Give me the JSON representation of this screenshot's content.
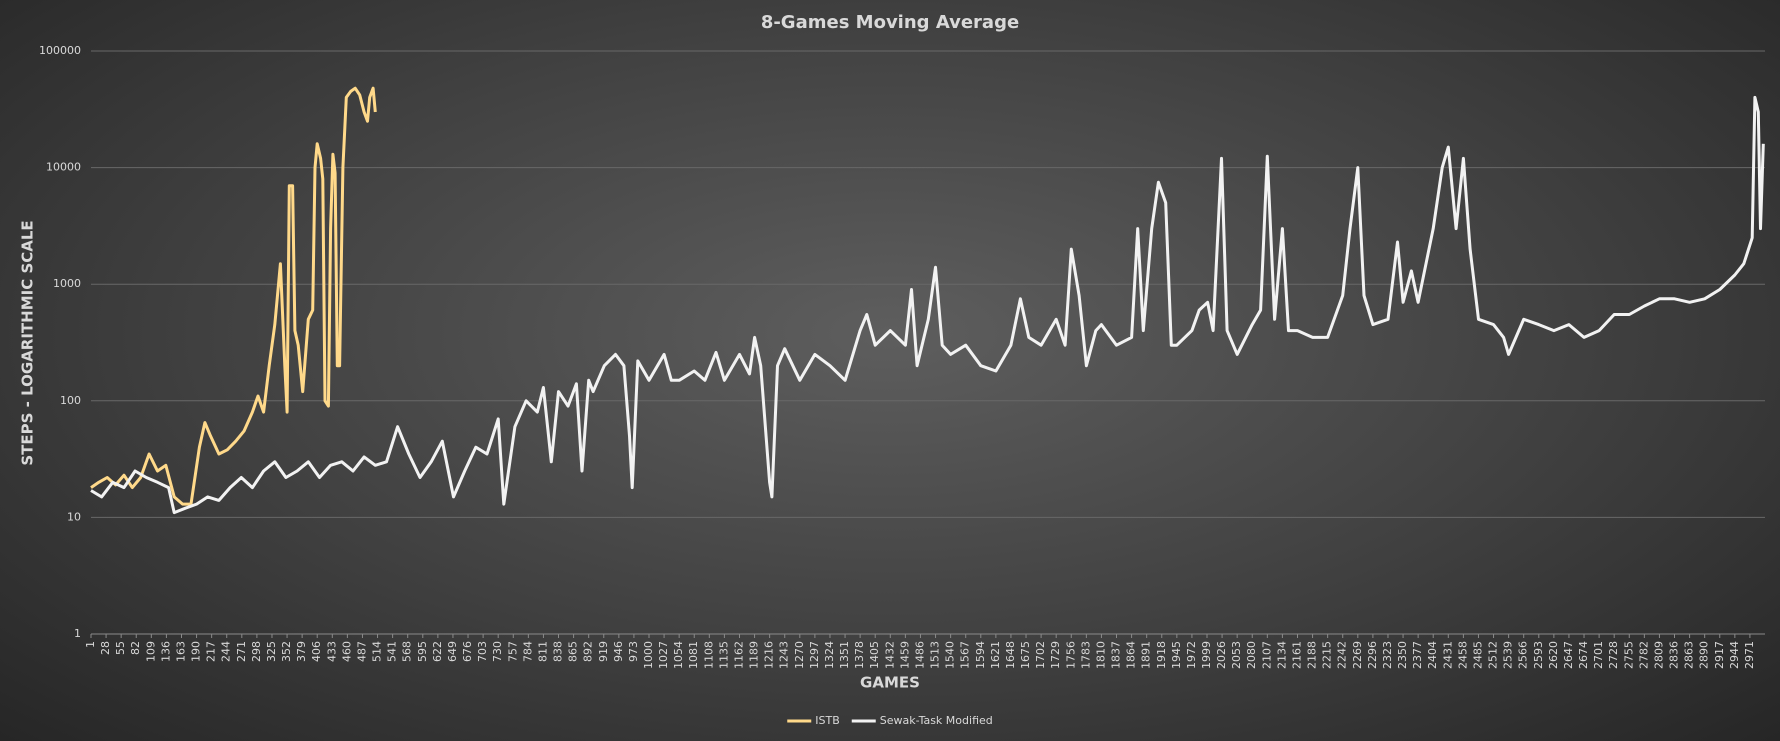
{
  "chart_data": {
    "type": "line",
    "title": "8-Games  Moving  Average",
    "x_label": "GAMES",
    "y_label": "STEPS - LOGARITHMIC SCALE",
    "y_scale": "log",
    "grid": true,
    "legend": "bottom",
    "xlim": [
      1,
      2998
    ],
    "ylim": [
      1,
      100000
    ],
    "yticks": [
      1,
      10,
      100,
      1000,
      10000,
      100000
    ],
    "xticks": [
      1,
      28,
      55,
      82,
      109,
      136,
      163,
      190,
      217,
      244,
      271,
      298,
      325,
      352,
      379,
      406,
      433,
      460,
      487,
      514,
      541,
      568,
      595,
      622,
      649,
      676,
      703,
      730,
      757,
      784,
      811,
      838,
      865,
      892,
      919,
      946,
      973,
      1000,
      1027,
      1054,
      1081,
      1108,
      1135,
      1162,
      1189,
      1216,
      1243,
      1270,
      1297,
      1324,
      1351,
      1378,
      1405,
      1432,
      1459,
      1486,
      1513,
      1540,
      1567,
      1594,
      1621,
      1648,
      1675,
      1702,
      1729,
      1756,
      1783,
      1810,
      1837,
      1864,
      1891,
      1918,
      1945,
      1972,
      1999,
      2026,
      2053,
      2080,
      2107,
      2134,
      2161,
      2188,
      2215,
      2242,
      2269,
      2296,
      2323,
      2350,
      2377,
      2404,
      2431,
      2458,
      2485,
      2512,
      2539,
      2566,
      2593,
      2620,
      2647,
      2674,
      2701,
      2728,
      2755,
      2782,
      2809,
      2836,
      2863,
      2890,
      2917,
      2944,
      2971
    ],
    "series": [
      {
        "name": "ISTB",
        "color": "#ffd98a",
        "x": [
          1,
          15,
          30,
          45,
          60,
          75,
          90,
          105,
          120,
          135,
          150,
          165,
          180,
          195,
          205,
          215,
          230,
          245,
          260,
          275,
          290,
          300,
          310,
          320,
          330,
          340,
          348,
          352,
          356,
          362,
          366,
          372,
          380,
          390,
          398,
          402,
          406,
          412,
          416,
          420,
          426,
          430,
          434,
          438,
          442,
          446,
          452,
          458,
          466,
          474,
          482,
          490,
          496,
          500,
          506,
          510
        ],
        "values": [
          18,
          20,
          22,
          19,
          23,
          18,
          22,
          35,
          25,
          28,
          15,
          13,
          13,
          40,
          65,
          50,
          35,
          38,
          45,
          55,
          80,
          110,
          80,
          200,
          450,
          1500,
          200,
          80,
          7000,
          7000,
          400,
          300,
          120,
          500,
          600,
          10000,
          16000,
          12000,
          8000,
          100,
          90,
          3000,
          13000,
          9000,
          200,
          200,
          10000,
          40000,
          45000,
          48000,
          42000,
          30000,
          25000,
          40000,
          48000,
          30000
        ]
      },
      {
        "name": "Sewak-Task Modified",
        "color": "#f2f2f2",
        "x": [
          1,
          20,
          40,
          60,
          80,
          100,
          120,
          140,
          150,
          170,
          190,
          210,
          230,
          250,
          270,
          290,
          310,
          330,
          350,
          370,
          390,
          410,
          430,
          450,
          470,
          490,
          510,
          530,
          550,
          570,
          590,
          610,
          630,
          650,
          670,
          690,
          710,
          730,
          740,
          760,
          780,
          800,
          811,
          825,
          838,
          855,
          870,
          880,
          892,
          900,
          920,
          940,
          955,
          965,
          970,
          980,
          1000,
          1027,
          1040,
          1054,
          1081,
          1100,
          1120,
          1135,
          1162,
          1180,
          1189,
          1200,
          1216,
          1220,
          1230,
          1243,
          1270,
          1297,
          1324,
          1351,
          1378,
          1390,
          1405,
          1432,
          1459,
          1470,
          1480,
          1500,
          1513,
          1525,
          1540,
          1567,
          1594,
          1621,
          1648,
          1665,
          1680,
          1702,
          1729,
          1745,
          1756,
          1770,
          1783,
          1800,
          1810,
          1837,
          1864,
          1875,
          1885,
          1900,
          1912,
          1925,
          1935,
          1945,
          1972,
          1985,
          2000,
          2010,
          2025,
          2035,
          2053,
          2080,
          2095,
          2107,
          2120,
          2134,
          2145,
          2161,
          2188,
          2215,
          2242,
          2255,
          2269,
          2280,
          2296,
          2323,
          2340,
          2350,
          2365,
          2377,
          2404,
          2420,
          2431,
          2445,
          2458,
          2470,
          2485,
          2512,
          2530,
          2539,
          2566,
          2593,
          2620,
          2647,
          2674,
          2701,
          2728,
          2755,
          2782,
          2809,
          2836,
          2863,
          2890,
          2917,
          2944,
          2960,
          2975,
          2980,
          2986,
          2990,
          2995
        ],
        "values": [
          17,
          15,
          20,
          18,
          25,
          22,
          20,
          18,
          11,
          12,
          13,
          15,
          14,
          18,
          22,
          18,
          25,
          30,
          22,
          25,
          30,
          22,
          28,
          30,
          25,
          33,
          28,
          30,
          60,
          35,
          22,
          30,
          45,
          15,
          25,
          40,
          35,
          70,
          13,
          60,
          100,
          80,
          130,
          30,
          120,
          90,
          140,
          25,
          150,
          120,
          200,
          250,
          200,
          50,
          18,
          220,
          150,
          250,
          150,
          150,
          180,
          150,
          260,
          150,
          250,
          170,
          350,
          200,
          20,
          15,
          200,
          280,
          150,
          250,
          200,
          150,
          400,
          550,
          300,
          400,
          300,
          900,
          200,
          500,
          1400,
          300,
          250,
          300,
          200,
          180,
          300,
          750,
          350,
          300,
          500,
          300,
          2000,
          800,
          200,
          400,
          450,
          300,
          350,
          3000,
          400,
          3000,
          7500,
          5000,
          300,
          300,
          400,
          600,
          700,
          400,
          12000,
          400,
          250,
          450,
          600,
          12500,
          500,
          3000,
          400,
          400,
          350,
          350,
          800,
          3000,
          10000,
          800,
          450,
          500,
          2300,
          700,
          1300,
          700,
          3000,
          10000,
          15000,
          3000,
          12000,
          2000,
          500,
          450,
          350,
          250,
          500,
          450,
          400,
          450,
          350,
          400,
          550,
          550,
          650,
          750,
          750,
          700,
          750,
          900,
          1200,
          1500,
          2500,
          40000,
          30000,
          3000,
          16000
        ]
      }
    ]
  }
}
